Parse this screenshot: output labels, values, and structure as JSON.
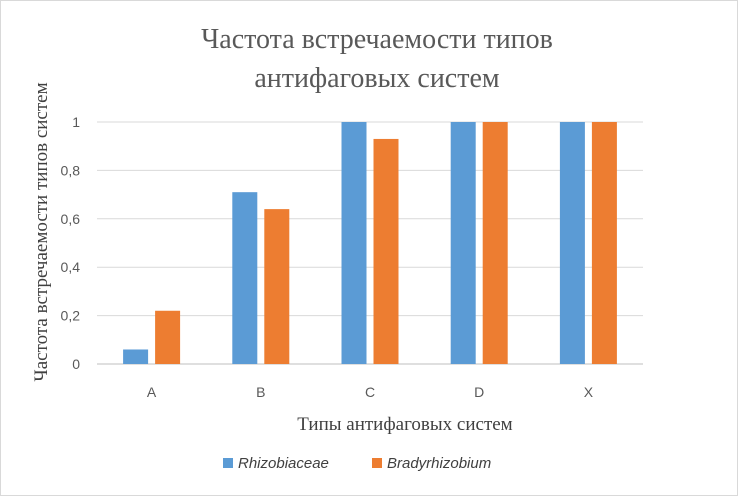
{
  "chart_data": {
    "type": "bar",
    "title_lines": [
      "Частота встречаемости типов",
      "антифаговых систем"
    ],
    "xlabel": "Типы антифаговых систем",
    "ylabel": "Частота встречаемости типов систем",
    "categories": [
      "A",
      "B",
      "C",
      "D",
      "X"
    ],
    "ylim": [
      0,
      1
    ],
    "yticks": [
      "0",
      "0,2",
      "0,4",
      "0,6",
      "0,8",
      "1"
    ],
    "grid": true,
    "legend_position": "bottom",
    "series": [
      {
        "name": "Rhizobiaceae",
        "color": "#5b9bd5",
        "values": [
          0.06,
          0.71,
          1.0,
          1.0,
          1.0
        ]
      },
      {
        "name": "Bradyrhizobium",
        "color": "#ed7d31",
        "values": [
          0.22,
          0.64,
          0.93,
          1.0,
          1.0
        ]
      }
    ]
  }
}
